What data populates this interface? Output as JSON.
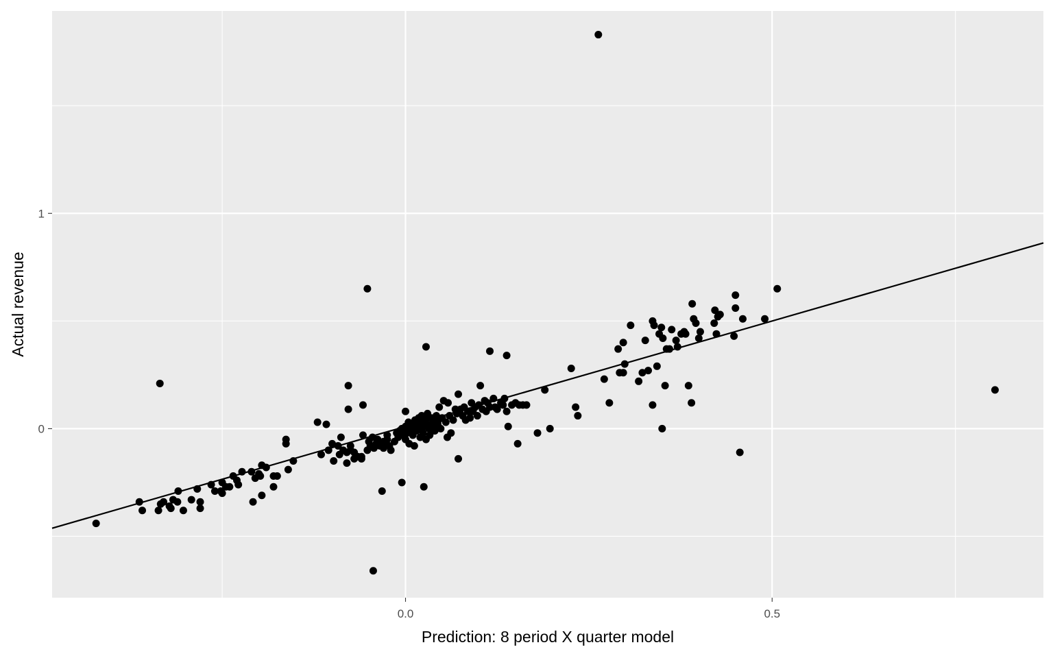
{
  "chart_data": {
    "type": "scatter",
    "title": "",
    "xlabel": "Prediction: 8 period X quarter model",
    "ylabel": "Actual revenue",
    "xlim": [
      -0.482,
      0.87
    ],
    "ylim": [
      -0.785,
      1.94
    ],
    "x_ticks": [
      0.0,
      0.5
    ],
    "x_tick_labels": [
      "0.0",
      "0.5"
    ],
    "y_ticks": [
      0,
      1
    ],
    "y_tick_labels": [
      "0",
      "1"
    ],
    "x_minor_ticks": [
      -0.25,
      0.75
    ],
    "y_minor_ticks": [
      -0.5,
      0.5,
      1.5
    ],
    "grid": true,
    "legend": "none",
    "panel_color": "#ebebeb",
    "grid_color": "#ffffff",
    "point_color": "#000000",
    "fit_line": {
      "slope": 0.98,
      "intercept": 0.01,
      "color": "#000000"
    },
    "points": [
      {
        "x": -0.422,
        "y": -0.44
      },
      {
        "x": -0.363,
        "y": -0.34
      },
      {
        "x": -0.359,
        "y": -0.38
      },
      {
        "x": -0.337,
        "y": -0.38
      },
      {
        "x": -0.334,
        "y": -0.35
      },
      {
        "x": -0.33,
        "y": -0.34
      },
      {
        "x": -0.322,
        "y": -0.36
      },
      {
        "x": -0.32,
        "y": -0.37
      },
      {
        "x": -0.317,
        "y": -0.33
      },
      {
        "x": -0.311,
        "y": -0.34
      },
      {
        "x": -0.31,
        "y": -0.29
      },
      {
        "x": -0.303,
        "y": -0.38
      },
      {
        "x": -0.292,
        "y": -0.33
      },
      {
        "x": -0.284,
        "y": -0.28
      },
      {
        "x": -0.28,
        "y": -0.34
      },
      {
        "x": -0.28,
        "y": -0.37
      },
      {
        "x": -0.265,
        "y": -0.26
      },
      {
        "x": -0.26,
        "y": -0.29
      },
      {
        "x": -0.252,
        "y": -0.29
      },
      {
        "x": -0.25,
        "y": -0.25
      },
      {
        "x": -0.25,
        "y": -0.3
      },
      {
        "x": -0.245,
        "y": -0.27
      },
      {
        "x": -0.24,
        "y": -0.27
      },
      {
        "x": -0.235,
        "y": -0.22
      },
      {
        "x": -0.23,
        "y": -0.24
      },
      {
        "x": -0.228,
        "y": -0.26
      },
      {
        "x": -0.223,
        "y": -0.2
      },
      {
        "x": -0.21,
        "y": -0.2
      },
      {
        "x": -0.208,
        "y": -0.34
      },
      {
        "x": -0.205,
        "y": -0.23
      },
      {
        "x": -0.2,
        "y": -0.21
      },
      {
        "x": -0.198,
        "y": -0.22
      },
      {
        "x": -0.196,
        "y": -0.17
      },
      {
        "x": -0.196,
        "y": -0.31
      },
      {
        "x": -0.19,
        "y": -0.18
      },
      {
        "x": -0.18,
        "y": -0.27
      },
      {
        "x": -0.18,
        "y": -0.22
      },
      {
        "x": -0.175,
        "y": -0.22
      },
      {
        "x": -0.163,
        "y": -0.05
      },
      {
        "x": -0.163,
        "y": -0.07
      },
      {
        "x": -0.16,
        "y": -0.19
      },
      {
        "x": -0.153,
        "y": -0.15
      },
      {
        "x": -0.335,
        "y": 0.21
      },
      {
        "x": -0.12,
        "y": 0.03
      },
      {
        "x": -0.115,
        "y": -0.12
      },
      {
        "x": -0.108,
        "y": 0.02
      },
      {
        "x": -0.105,
        "y": -0.1
      },
      {
        "x": -0.1,
        "y": -0.07
      },
      {
        "x": -0.098,
        "y": -0.15
      },
      {
        "x": -0.092,
        "y": -0.08
      },
      {
        "x": -0.09,
        "y": -0.12
      },
      {
        "x": -0.088,
        "y": -0.04
      },
      {
        "x": -0.085,
        "y": -0.1
      },
      {
        "x": -0.08,
        "y": -0.11
      },
      {
        "x": -0.08,
        "y": -0.16
      },
      {
        "x": -0.078,
        "y": 0.09
      },
      {
        "x": -0.075,
        "y": -0.08
      },
      {
        "x": -0.075,
        "y": -0.1
      },
      {
        "x": -0.07,
        "y": -0.11
      },
      {
        "x": -0.07,
        "y": -0.14
      },
      {
        "x": -0.065,
        "y": -0.13
      },
      {
        "x": -0.06,
        "y": -0.14
      },
      {
        "x": -0.06,
        "y": -0.13
      },
      {
        "x": -0.058,
        "y": -0.03
      },
      {
        "x": -0.058,
        "y": 0.11
      },
      {
        "x": -0.078,
        "y": 0.2
      },
      {
        "x": -0.052,
        "y": -0.1
      },
      {
        "x": -0.05,
        "y": -0.06
      },
      {
        "x": -0.048,
        "y": -0.08
      },
      {
        "x": -0.045,
        "y": -0.04
      },
      {
        "x": -0.043,
        "y": -0.09
      },
      {
        "x": -0.04,
        "y": -0.07
      },
      {
        "x": -0.038,
        "y": -0.05
      },
      {
        "x": -0.035,
        "y": -0.08
      },
      {
        "x": -0.03,
        "y": -0.09
      },
      {
        "x": -0.03,
        "y": -0.06
      },
      {
        "x": -0.028,
        "y": -0.07
      },
      {
        "x": -0.025,
        "y": -0.03
      },
      {
        "x": -0.025,
        "y": -0.05
      },
      {
        "x": -0.022,
        "y": -0.08
      },
      {
        "x": -0.02,
        "y": -0.1
      },
      {
        "x": -0.015,
        "y": -0.06
      },
      {
        "x": -0.012,
        "y": -0.02
      },
      {
        "x": -0.01,
        "y": -0.04
      },
      {
        "x": -0.008,
        "y": -0.01
      },
      {
        "x": -0.005,
        "y": 0.0
      },
      {
        "x": -0.003,
        "y": -0.03
      },
      {
        "x": 0.0,
        "y": 0.01
      },
      {
        "x": 0.0,
        "y": -0.05
      },
      {
        "x": 0.002,
        "y": -0.02
      },
      {
        "x": 0.004,
        "y": 0.03
      },
      {
        "x": 0.005,
        "y": -0.07
      },
      {
        "x": 0.006,
        "y": -0.01
      },
      {
        "x": 0.008,
        "y": 0.02
      },
      {
        "x": 0.01,
        "y": -0.03
      },
      {
        "x": 0.01,
        "y": 0.0
      },
      {
        "x": 0.012,
        "y": -0.08
      },
      {
        "x": 0.013,
        "y": 0.04
      },
      {
        "x": 0.015,
        "y": -0.01
      },
      {
        "x": 0.016,
        "y": 0.02
      },
      {
        "x": 0.018,
        "y": 0.05
      },
      {
        "x": 0.02,
        "y": -0.04
      },
      {
        "x": 0.02,
        "y": 0.0
      },
      {
        "x": 0.021,
        "y": 0.03
      },
      {
        "x": 0.022,
        "y": 0.06
      },
      {
        "x": 0.024,
        "y": -0.02
      },
      {
        "x": 0.025,
        "y": 0.01
      },
      {
        "x": 0.027,
        "y": 0.04
      },
      {
        "x": 0.028,
        "y": -0.05
      },
      {
        "x": 0.03,
        "y": 0.02
      },
      {
        "x": 0.03,
        "y": 0.07
      },
      {
        "x": 0.032,
        "y": 0.0
      },
      {
        "x": 0.033,
        "y": -0.03
      },
      {
        "x": 0.035,
        "y": 0.05
      },
      {
        "x": 0.036,
        "y": 0.01
      },
      {
        "x": 0.038,
        "y": 0.03
      },
      {
        "x": 0.04,
        "y": -0.01
      },
      {
        "x": 0.042,
        "y": 0.06
      },
      {
        "x": 0.044,
        "y": 0.02
      },
      {
        "x": 0.045,
        "y": 0.04
      },
      {
        "x": 0.046,
        "y": 0.1
      },
      {
        "x": 0.048,
        "y": 0.0
      },
      {
        "x": 0.05,
        "y": 0.05
      },
      {
        "x": 0.052,
        "y": 0.13
      },
      {
        "x": 0.055,
        "y": 0.03
      },
      {
        "x": 0.057,
        "y": -0.04
      },
      {
        "x": 0.058,
        "y": 0.12
      },
      {
        "x": 0.06,
        "y": 0.06
      },
      {
        "x": 0.062,
        "y": -0.02
      },
      {
        "x": 0.065,
        "y": 0.04
      },
      {
        "x": 0.068,
        "y": 0.09
      },
      {
        "x": 0.07,
        "y": 0.07
      },
      {
        "x": 0.072,
        "y": 0.16
      },
      {
        "x": 0.075,
        "y": 0.09
      },
      {
        "x": 0.078,
        "y": 0.06
      },
      {
        "x": 0.08,
        "y": 0.1
      },
      {
        "x": 0.082,
        "y": 0.04
      },
      {
        "x": 0.085,
        "y": 0.08
      },
      {
        "x": 0.088,
        "y": 0.05
      },
      {
        "x": 0.09,
        "y": 0.12
      },
      {
        "x": 0.092,
        "y": 0.08
      },
      {
        "x": 0.095,
        "y": 0.1
      },
      {
        "x": 0.098,
        "y": 0.06
      },
      {
        "x": 0.1,
        "y": 0.11
      },
      {
        "x": 0.102,
        "y": 0.2
      },
      {
        "x": 0.105,
        "y": 0.09
      },
      {
        "x": 0.108,
        "y": 0.13
      },
      {
        "x": 0.11,
        "y": 0.08
      },
      {
        "x": 0.112,
        "y": 0.12
      },
      {
        "x": 0.115,
        "y": 0.1
      },
      {
        "x": 0.12,
        "y": 0.14
      },
      {
        "x": 0.122,
        "y": 0.1
      },
      {
        "x": 0.125,
        "y": 0.09
      },
      {
        "x": 0.13,
        "y": 0.12
      },
      {
        "x": 0.133,
        "y": 0.11
      },
      {
        "x": 0.135,
        "y": 0.14
      },
      {
        "x": 0.138,
        "y": 0.08
      },
      {
        "x": 0.14,
        "y": 0.01
      },
      {
        "x": 0.145,
        "y": 0.11
      },
      {
        "x": 0.15,
        "y": 0.12
      },
      {
        "x": 0.155,
        "y": 0.11
      },
      {
        "x": 0.16,
        "y": 0.11
      },
      {
        "x": 0.165,
        "y": 0.11
      },
      {
        "x": 0.115,
        "y": 0.36
      },
      {
        "x": 0.138,
        "y": 0.34
      },
      {
        "x": 0.153,
        "y": -0.07
      },
      {
        "x": 0.18,
        "y": -0.02
      },
      {
        "x": 0.19,
        "y": 0.18
      },
      {
        "x": 0.197,
        "y": 0.0
      },
      {
        "x": 0.226,
        "y": 0.28
      },
      {
        "x": 0.232,
        "y": 0.1
      },
      {
        "x": 0.235,
        "y": 0.06
      },
      {
        "x": 0.028,
        "y": 0.38
      },
      {
        "x": 0.0,
        "y": 0.08
      },
      {
        "x": -0.052,
        "y": 0.65
      },
      {
        "x": 0.263,
        "y": 1.83
      },
      {
        "x": -0.044,
        "y": -0.66
      },
      {
        "x": -0.032,
        "y": -0.29
      },
      {
        "x": -0.005,
        "y": -0.25
      },
      {
        "x": 0.025,
        "y": -0.27
      },
      {
        "x": 0.072,
        "y": -0.14
      },
      {
        "x": 0.271,
        "y": 0.23
      },
      {
        "x": 0.278,
        "y": 0.12
      },
      {
        "x": 0.29,
        "y": 0.37
      },
      {
        "x": 0.292,
        "y": 0.26
      },
      {
        "x": 0.297,
        "y": 0.26
      },
      {
        "x": 0.297,
        "y": 0.4
      },
      {
        "x": 0.299,
        "y": 0.3
      },
      {
        "x": 0.307,
        "y": 0.48
      },
      {
        "x": 0.318,
        "y": 0.22
      },
      {
        "x": 0.323,
        "y": 0.26
      },
      {
        "x": 0.327,
        "y": 0.41
      },
      {
        "x": 0.331,
        "y": 0.27
      },
      {
        "x": 0.337,
        "y": 0.5
      },
      {
        "x": 0.339,
        "y": 0.48
      },
      {
        "x": 0.343,
        "y": 0.29
      },
      {
        "x": 0.346,
        "y": 0.44
      },
      {
        "x": 0.349,
        "y": 0.47
      },
      {
        "x": 0.351,
        "y": 0.42
      },
      {
        "x": 0.354,
        "y": 0.2
      },
      {
        "x": 0.356,
        "y": 0.37
      },
      {
        "x": 0.36,
        "y": 0.37
      },
      {
        "x": 0.363,
        "y": 0.46
      },
      {
        "x": 0.369,
        "y": 0.41
      },
      {
        "x": 0.371,
        "y": 0.38
      },
      {
        "x": 0.376,
        "y": 0.44
      },
      {
        "x": 0.38,
        "y": 0.45
      },
      {
        "x": 0.382,
        "y": 0.44
      },
      {
        "x": 0.386,
        "y": 0.2
      },
      {
        "x": 0.39,
        "y": 0.12
      },
      {
        "x": 0.391,
        "y": 0.58
      },
      {
        "x": 0.393,
        "y": 0.51
      },
      {
        "x": 0.396,
        "y": 0.49
      },
      {
        "x": 0.4,
        "y": 0.42
      },
      {
        "x": 0.402,
        "y": 0.45
      },
      {
        "x": 0.421,
        "y": 0.49
      },
      {
        "x": 0.422,
        "y": 0.55
      },
      {
        "x": 0.424,
        "y": 0.44
      },
      {
        "x": 0.426,
        "y": 0.52
      },
      {
        "x": 0.429,
        "y": 0.53
      },
      {
        "x": 0.45,
        "y": 0.62
      },
      {
        "x": 0.45,
        "y": 0.56
      },
      {
        "x": 0.456,
        "y": -0.11
      },
      {
        "x": 0.46,
        "y": 0.51
      },
      {
        "x": 0.49,
        "y": 0.51
      },
      {
        "x": 0.507,
        "y": 0.65
      },
      {
        "x": 0.35,
        "y": 0.0
      },
      {
        "x": 0.337,
        "y": 0.11
      },
      {
        "x": 0.448,
        "y": 0.43
      },
      {
        "x": 0.804,
        "y": 0.18
      }
    ]
  }
}
